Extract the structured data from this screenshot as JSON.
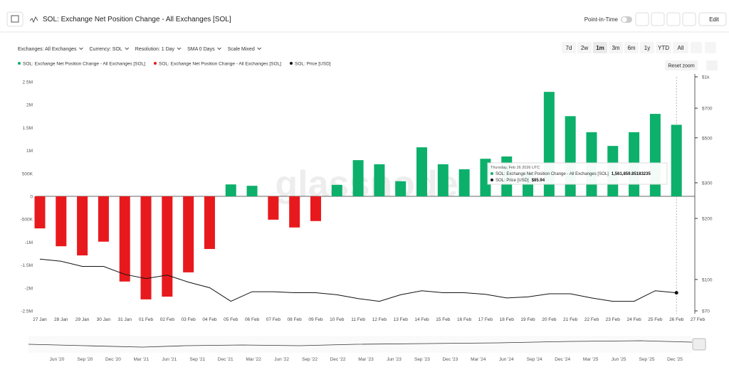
{
  "header": {
    "title": "SOL: Exchange Net Position Change - All Exchanges [SOL]",
    "point_in_time": "Point-in-Time",
    "edit": "Edit"
  },
  "controls": {
    "filters": [
      "Exchanges: All Exchanges",
      "Currency: SOL",
      "Resolution: 1 Day",
      "SMA 0 Days",
      "Scale Mixed"
    ],
    "ranges": [
      "7d",
      "2w",
      "1m",
      "3m",
      "6m",
      "1y",
      "YTD",
      "All"
    ],
    "selected_range": "1m",
    "reset_zoom": "Reset zoom"
  },
  "navigator": {
    "labels": [
      "Jun '20",
      "Sep '20",
      "Dec '20",
      "Mar '21",
      "Jun '21",
      "Sep '21",
      "Dec '21",
      "Mar '22",
      "Jun '22",
      "Sep '22",
      "Dec '22",
      "Mar '23",
      "Jun '23",
      "Sep '23",
      "Dec '23",
      "Mar '24",
      "Jun '24",
      "Sep '24",
      "Dec '24",
      "Mar '25",
      "Jun '25",
      "Sep '25",
      "Dec '25"
    ]
  },
  "chart_data": {
    "type": "bar",
    "watermark": "glassnode",
    "categories": [
      "27 Jan",
      "28 Jan",
      "29 Jan",
      "30 Jan",
      "31 Jan",
      "01 Feb",
      "02 Feb",
      "03 Feb",
      "04 Feb",
      "05 Feb",
      "06 Feb",
      "07 Feb",
      "08 Feb",
      "09 Feb",
      "10 Feb",
      "11 Feb",
      "12 Feb",
      "13 Feb",
      "14 Feb",
      "15 Feb",
      "16 Feb",
      "17 Feb",
      "18 Feb",
      "19 Feb",
      "20 Feb",
      "21 Feb",
      "22 Feb",
      "23 Feb",
      "24 Feb",
      "25 Feb",
      "26 Feb",
      "27 Feb"
    ],
    "series": [
      {
        "name": "SOL: Exchange Net Position Change - All Exchanges [SOL]",
        "color": "#0cb06b",
        "values": [
          null,
          null,
          null,
          null,
          null,
          null,
          null,
          null,
          null,
          260000,
          230000,
          null,
          null,
          null,
          250000,
          790000,
          700000,
          330000,
          1070000,
          700000,
          590000,
          820000,
          870000,
          550000,
          2280000,
          1750000,
          1400000,
          1100000,
          1400000,
          1800000,
          1561859.85183235,
          null
        ]
      },
      {
        "name": "SOL: Exchange Net Position Change - All Exchanges [SOL]",
        "color": "#e8191d",
        "values": [
          -700000,
          -1090000,
          -1290000,
          -990000,
          -1860000,
          -2250000,
          -2190000,
          -1660000,
          -1150000,
          null,
          null,
          -510000,
          -680000,
          -540000,
          null,
          null,
          null,
          null,
          null,
          null,
          null,
          null,
          null,
          null,
          null,
          null,
          null,
          null,
          null,
          null,
          null,
          null
        ]
      },
      {
        "name": "SOL: Price [USD]",
        "color": "#111111",
        "type": "line",
        "axis": "y2",
        "values": [
          126,
          123,
          116,
          116,
          106,
          101,
          105,
          97,
          91,
          78,
          87,
          87,
          86,
          86,
          84,
          80.5,
          78,
          84,
          88,
          86,
          86,
          84.5,
          81,
          82,
          85,
          85,
          81,
          78,
          78,
          88,
          85.94,
          null
        ]
      }
    ],
    "ylim": [
      -2500000,
      2500000
    ],
    "yticks": [
      {
        "value": -2500000,
        "label": "-2.5M"
      },
      {
        "value": -2000000,
        "label": "-2M"
      },
      {
        "value": -1500000,
        "label": "-1.5M"
      },
      {
        "value": -1000000,
        "label": "-1M"
      },
      {
        "value": -500000,
        "label": "-500K"
      },
      0,
      {
        "value": 500000,
        "label": "500K"
      },
      {
        "value": 1000000,
        "label": "1M"
      },
      {
        "value": 1500000,
        "label": "1.5M"
      },
      {
        "value": 2000000,
        "label": "2M"
      },
      {
        "value": 2500000,
        "label": "2.5M"
      }
    ],
    "y2lim": [
      70,
      1000
    ],
    "y2log": true,
    "y2ticks": [
      {
        "value": 70,
        "label": "$70"
      },
      {
        "value": 100,
        "label": "$100"
      },
      {
        "value": 200,
        "label": "$200"
      },
      {
        "value": 300,
        "label": "$300"
      },
      {
        "value": 500,
        "label": "$500"
      },
      {
        "value": 700,
        "label": "$700"
      },
      {
        "value": 1000,
        "label": "$1k"
      }
    ],
    "grid": false,
    "tooltip": {
      "date": "Thursday, Feb 26 2026 UTC",
      "index": 30,
      "value_labels": [
        "1,561,859.85183235",
        "$85.94"
      ]
    }
  }
}
